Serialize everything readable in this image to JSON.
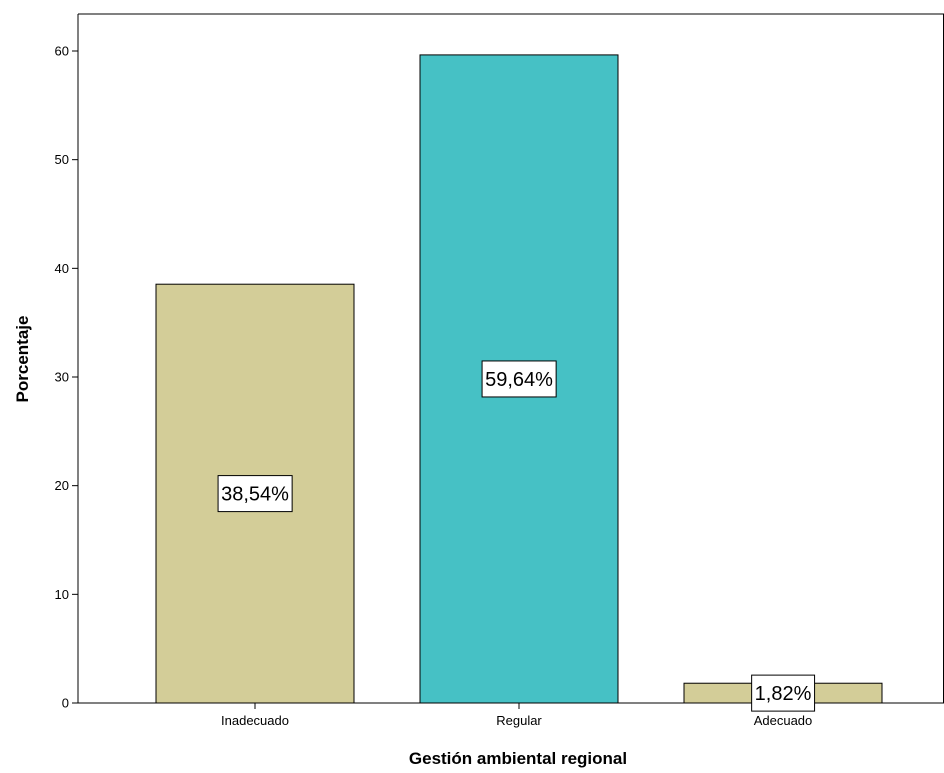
{
  "chart_data": {
    "type": "bar",
    "categories": [
      "Inadecuado",
      "Regular",
      "Adecuado"
    ],
    "values": [
      38.54,
      59.64,
      1.82
    ],
    "data_labels": [
      "38,54%",
      "59,64%",
      "1,82%"
    ],
    "bar_colors": [
      "#d3cd98",
      "#46c1c5",
      "#d3cd98"
    ],
    "title": "",
    "xlabel": "Gestión ambiental regional",
    "ylabel": "Porcentaje",
    "ylim": [
      0,
      65
    ],
    "yticks": [
      0,
      10,
      20,
      30,
      40,
      50,
      60
    ],
    "ytick_labels": [
      "0",
      "10",
      "20",
      "30",
      "40",
      "50",
      "60"
    ],
    "grid": false,
    "legend": "none"
  }
}
